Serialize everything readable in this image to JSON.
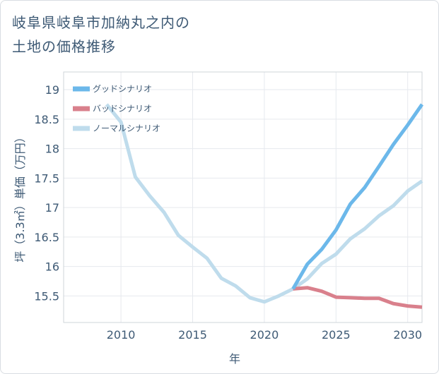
{
  "title_lines": [
    "岐阜県岐阜市加納丸之内の",
    "土地の価格推移"
  ],
  "colors": {
    "good": "#6cb8ea",
    "bad": "#d9808c",
    "normal": "#bfdcec",
    "text": "#3e5a75",
    "frame": "#cfd4da"
  },
  "chart_data": {
    "type": "line",
    "xlabel": "年",
    "ylabel": "坪（3.3㎡）単価（万円）",
    "xlim": [
      2006,
      2031
    ],
    "ylim": [
      15.05,
      19.3
    ],
    "x_ticks": [
      2010,
      2015,
      2020,
      2025,
      2030
    ],
    "y_ticks": [
      15.5,
      16,
      16.5,
      17,
      17.5,
      18,
      18.5,
      19
    ],
    "legend_position": "top-left",
    "series": [
      {
        "name": "グッドシナリオ",
        "color_key": "good",
        "x": [
          2022,
          2023,
          2024,
          2025,
          2026,
          2027,
          2028,
          2029,
          2030,
          2031
        ],
        "y": [
          15.62,
          16.04,
          16.29,
          16.62,
          17.06,
          17.34,
          17.7,
          18.07,
          18.4,
          18.75
        ]
      },
      {
        "name": "バッドシナリオ",
        "color_key": "bad",
        "x": [
          2022,
          2023,
          2024,
          2025,
          2026,
          2027,
          2028,
          2029,
          2030,
          2031
        ],
        "y": [
          15.62,
          15.64,
          15.58,
          15.48,
          15.47,
          15.46,
          15.46,
          15.37,
          15.33,
          15.31
        ]
      },
      {
        "name": "ノーマルシナリオ",
        "color_key": "normal",
        "x": [
          2009,
          2010,
          2011,
          2012,
          2013,
          2014,
          2015,
          2016,
          2017,
          2018,
          2019,
          2020,
          2021,
          2022,
          2023,
          2024,
          2025,
          2026,
          2027,
          2028,
          2029,
          2030,
          2031
        ],
        "y": [
          18.75,
          18.45,
          17.52,
          17.2,
          16.92,
          16.53,
          16.33,
          16.14,
          15.8,
          15.67,
          15.47,
          15.4,
          15.5,
          15.62,
          15.79,
          16.05,
          16.21,
          16.47,
          16.64,
          16.86,
          17.03,
          17.28,
          17.45
        ]
      }
    ]
  }
}
